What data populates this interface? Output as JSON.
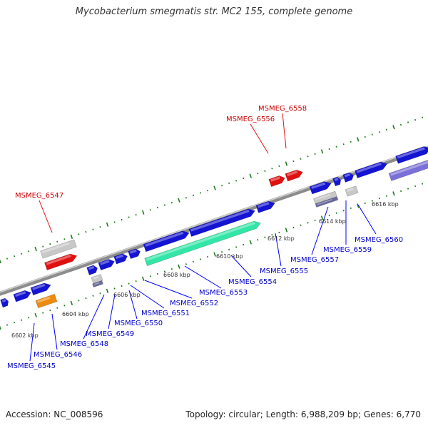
{
  "title": "Mycobacterium smegmatis str. MC2 155, complete genome",
  "footer": {
    "accession": "Accession: NC_008596",
    "topology": "Topology: circular; Length: 6,988,209 bp; Genes: 6,770"
  },
  "colors": {
    "backbone": "#8c8c8c",
    "cds_blue": "#1414d2",
    "rrna_teal": "#33e6a8",
    "red": "#e01010",
    "grey": "#c8c8c8",
    "orange": "#ee8a10",
    "purple": "#7a70d8",
    "navy_grey": "#6a6a9a",
    "tick": "#1e7a1e",
    "label_blue": "#0000cc",
    "label_red": "#cc0000"
  },
  "kbp_ticks": [
    "6602 kbp",
    "6604 kbp",
    "6606 kbp",
    "6608 kbp",
    "6610 kbp",
    "6612 kbp",
    "6614 kbp",
    "6616 kbp"
  ],
  "labels_top": [
    "MSMEG_6547",
    "MSMEG_6556",
    "MSMEG_6558"
  ],
  "labels_bottom": [
    "MSMEG_6545",
    "MSMEG_6546",
    "MSMEG_6548",
    "MSMEG_6549",
    "MSMEG_6550",
    "MSMEG_6551",
    "MSMEG_6552",
    "MSMEG_6553",
    "MSMEG_6554",
    "MSMEG_6555",
    "MSMEG_6557",
    "MSMEG_6559",
    "MSMEG_6560"
  ]
}
